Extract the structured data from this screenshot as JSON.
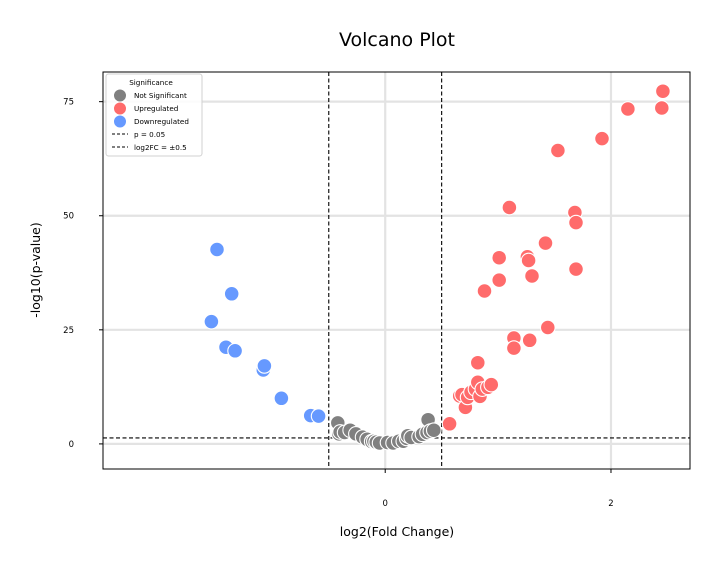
{
  "chart_data": {
    "type": "scatter",
    "title": "Volcano Plot",
    "xlabel": "log2(Fold Change)",
    "ylabel": "-log10(p-value)",
    "xlim": [
      -2.5,
      2.7
    ],
    "ylim": [
      -5.5,
      81.5
    ],
    "xticks": [
      0,
      2
    ],
    "xtick_labels": [
      "0",
      "2"
    ],
    "yticks": [
      0,
      25,
      50,
      75
    ],
    "ytick_labels": [
      "0",
      "25",
      "50",
      "75"
    ],
    "grid": true,
    "legend": {
      "title": "Significance",
      "position": "top-left",
      "entries": [
        {
          "label": "Not Significant",
          "kind": "marker",
          "series": 0
        },
        {
          "label": "Upregulated",
          "kind": "marker",
          "series": 1
        },
        {
          "label": "Downregulated",
          "kind": "marker",
          "series": 2
        },
        {
          "label": "p = 0.05",
          "kind": "line"
        },
        {
          "label": "log2FC = ±0.5",
          "kind": "line"
        }
      ]
    },
    "thresholds": {
      "p_line_y": 1.3,
      "fc_lines_x": [
        -0.5,
        0.5
      ]
    },
    "series": [
      {
        "name": "Not Significant",
        "color": "#808080",
        "points": [
          [
            -0.42,
            4.6
          ],
          [
            -0.41,
            2.2
          ],
          [
            -0.4,
            2.6
          ],
          [
            -0.36,
            2.5
          ],
          [
            -0.31,
            3.0
          ],
          [
            -0.26,
            2.2
          ],
          [
            -0.2,
            1.5
          ],
          [
            -0.16,
            1.0
          ],
          [
            -0.12,
            0.5
          ],
          [
            -0.1,
            0.6
          ],
          [
            -0.08,
            0.4
          ],
          [
            -0.05,
            0.2
          ],
          [
            0.02,
            0.3
          ],
          [
            0.07,
            0.2
          ],
          [
            0.12,
            0.6
          ],
          [
            0.16,
            0.6
          ],
          [
            0.19,
            1.2
          ],
          [
            0.2,
            1.8
          ],
          [
            0.23,
            1.4
          ],
          [
            0.3,
            1.6
          ],
          [
            0.33,
            2.1
          ],
          [
            0.37,
            2.5
          ],
          [
            0.38,
            5.3
          ],
          [
            0.4,
            2.8
          ],
          [
            0.43,
            3.0
          ]
        ]
      },
      {
        "name": "Upregulated",
        "color": "#ff6b6b",
        "points": [
          [
            0.57,
            4.4
          ],
          [
            0.66,
            10.5
          ],
          [
            0.68,
            10.8
          ],
          [
            0.71,
            8.0
          ],
          [
            0.73,
            10.2
          ],
          [
            0.76,
            11.3
          ],
          [
            0.8,
            12.0
          ],
          [
            0.82,
            13.5
          ],
          [
            0.82,
            17.8
          ],
          [
            0.84,
            10.4
          ],
          [
            0.86,
            12.0
          ],
          [
            0.88,
            33.5
          ],
          [
            0.91,
            12.4
          ],
          [
            0.94,
            13.0
          ],
          [
            1.01,
            35.9
          ],
          [
            1.01,
            40.8
          ],
          [
            1.1,
            51.8
          ],
          [
            1.14,
            23.2
          ],
          [
            1.14,
            21.0
          ],
          [
            1.26,
            41.0
          ],
          [
            1.27,
            40.2
          ],
          [
            1.28,
            22.7
          ],
          [
            1.3,
            36.8
          ],
          [
            1.42,
            44.0
          ],
          [
            1.44,
            25.5
          ],
          [
            1.53,
            64.3
          ],
          [
            1.68,
            50.7
          ],
          [
            1.69,
            48.5
          ],
          [
            1.69,
            38.3
          ],
          [
            1.92,
            66.9
          ],
          [
            2.15,
            73.4
          ],
          [
            2.45,
            73.6
          ],
          [
            2.46,
            77.3
          ]
        ]
      },
      {
        "name": "Downregulated",
        "color": "#6699ff",
        "points": [
          [
            -1.49,
            42.6
          ],
          [
            -1.41,
            21.2
          ],
          [
            -1.36,
            32.9
          ],
          [
            -1.33,
            20.4
          ],
          [
            -1.54,
            26.8
          ],
          [
            -1.08,
            16.2
          ],
          [
            -1.07,
            17.1
          ],
          [
            -0.92,
            10.0
          ],
          [
            -0.66,
            6.2
          ],
          [
            -0.59,
            6.1
          ]
        ]
      }
    ]
  }
}
